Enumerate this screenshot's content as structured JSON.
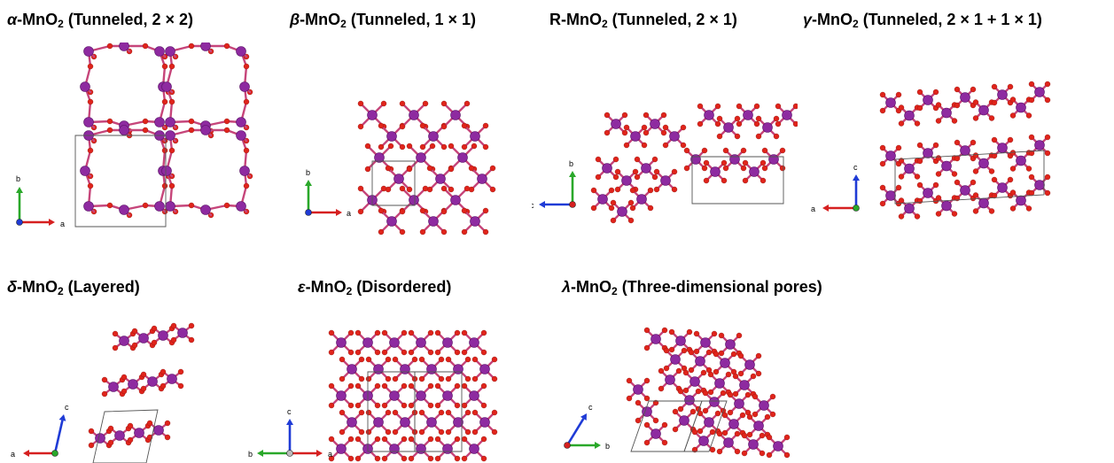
{
  "panels": [
    {
      "id": "alpha",
      "greek": "α",
      "formula_prefix": "-MnO",
      "sub": "2",
      "desc": " (Tunneled, 2 × 2)",
      "axes": {
        "horizontal": "a",
        "vertical": "b"
      }
    },
    {
      "id": "beta",
      "greek": "β",
      "formula_prefix": "-MnO",
      "sub": "2",
      "desc": " (Tunneled, 1 × 1)",
      "axes": {
        "horizontal": "a",
        "vertical": "b"
      }
    },
    {
      "id": "r",
      "greek": "",
      "formula_prefix": "R-MnO",
      "sub": "2",
      "desc": " (Tunneled, 2 × 1)",
      "axes": {
        "horizontal": "c",
        "vertical": "b"
      }
    },
    {
      "id": "gamma",
      "greek": "γ",
      "formula_prefix": "-MnO",
      "sub": "2",
      "desc": " (Tunneled, 2 × 1 + 1 × 1)",
      "axes": {
        "horizontal": "a",
        "vertical": "c"
      }
    },
    {
      "id": "delta",
      "greek": "δ",
      "formula_prefix": "-MnO",
      "sub": "2",
      "desc": " (Layered)",
      "axes": {
        "horizontal": "a",
        "vertical": "c"
      }
    },
    {
      "id": "epsilon",
      "greek": "ε",
      "formula_prefix": "-MnO",
      "sub": "2",
      "desc": " (Disordered)",
      "axes": {
        "horizontal_left": "b",
        "horizontal_right": "a",
        "vertical": "c"
      }
    },
    {
      "id": "lambda",
      "greek": "λ",
      "formula_prefix": "-MnO",
      "sub": "2",
      "desc": " (Three-dimensional pores)",
      "axes": {
        "horizontal": "b",
        "vertical": "c"
      }
    }
  ],
  "colors": {
    "mn_atom": "#8e2aa0",
    "o_atom": "#e0241b",
    "bond": "#c6457a",
    "cell": "#555555",
    "axis_red": "#d62020",
    "axis_green": "#2aa82a",
    "axis_blue": "#1f3bd6"
  }
}
